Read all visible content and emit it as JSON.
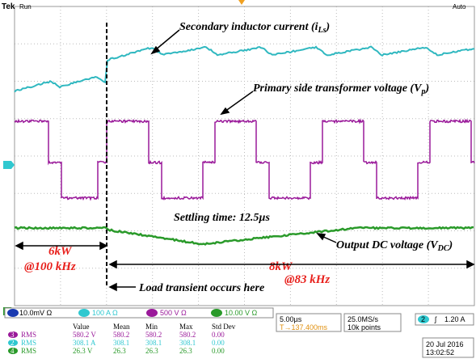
{
  "header": {
    "brand": "Tek",
    "status": "Run",
    "trigger_mode": "Auto"
  },
  "annotations": [
    {
      "text": "Secondary inductor current (i",
      "sub": "Ls",
      "end": ")"
    },
    {
      "text": "Primary side transformer voltage (V",
      "sub": "p",
      "end": ")"
    },
    {
      "text": "Settling time: 12.5µs"
    },
    {
      "text": "Output DC voltage (V",
      "sub": "DC",
      "end": ")"
    },
    {
      "text": "6kW"
    },
    {
      "text": "@100 kHz"
    },
    {
      "text": "8kW"
    },
    {
      "text": "@83 kHz"
    },
    {
      "text": "Load transient occurs here"
    }
  ],
  "channels": [
    {
      "scale": "10.0mV Ω"
    },
    {
      "scale": "100 A Ω"
    },
    {
      "scale": "500 V Ω"
    },
    {
      "scale": "10.00 V Ω"
    }
  ],
  "timebase": {
    "scale": "5.00µs",
    "delay": "T→137.400ms"
  },
  "acquisition": {
    "sample_rate": "25.0MS/s",
    "record_length": "10k points"
  },
  "trigger": {
    "source": "2",
    "slope": "ʃ",
    "level": "1.20 A"
  },
  "clock": {
    "date": "20 Jul 2016",
    "time": "13:02:52"
  },
  "measurements": {
    "columns": [
      "Value",
      "Mean",
      "Min",
      "Max",
      "Std Dev"
    ],
    "rows": [
      {
        "channel": "3",
        "type": "RMS",
        "cells": [
          "580.2 V",
          "580.2",
          "580.2",
          "580.2",
          "0.00"
        ]
      },
      {
        "channel": "2",
        "type": "RMS",
        "cells": [
          "308.1 A",
          "308.1",
          "308.1",
          "308.1",
          "0.00"
        ]
      },
      {
        "channel": "4",
        "type": "RMS",
        "cells": [
          "26.3 V",
          "26.3",
          "26.3",
          "26.3",
          "0.00"
        ]
      }
    ]
  }
}
